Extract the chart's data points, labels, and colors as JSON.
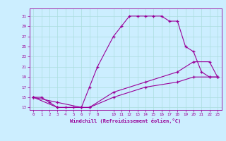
{
  "xlabel": "Windchill (Refroidissement éolien,°C)",
  "bg_color": "#cceeff",
  "grid_color": "#aadddd",
  "line_color": "#990099",
  "xlim": [
    -0.5,
    23.5
  ],
  "ylim": [
    12.5,
    32.5
  ],
  "xticks": [
    0,
    1,
    2,
    3,
    4,
    5,
    6,
    7,
    8,
    10,
    11,
    12,
    13,
    14,
    15,
    16,
    17,
    18,
    19,
    20,
    21,
    22,
    23
  ],
  "yticks": [
    13,
    15,
    17,
    19,
    21,
    23,
    25,
    27,
    29,
    31
  ],
  "curve1_x": [
    0,
    1,
    2,
    3,
    4,
    5,
    6,
    7,
    8,
    10,
    11,
    12,
    13,
    14,
    15,
    16,
    17,
    18,
    19,
    20,
    21,
    22,
    23
  ],
  "curve1_y": [
    15,
    15,
    14,
    13,
    13,
    13,
    13,
    17,
    21,
    27,
    29,
    31,
    31,
    31,
    31,
    31,
    30,
    30,
    25,
    24,
    20,
    19,
    19
  ],
  "curve2_x": [
    0,
    3,
    6,
    7,
    10,
    14,
    18,
    20,
    22,
    23
  ],
  "curve2_y": [
    15,
    14,
    13,
    13,
    16,
    18,
    20,
    22,
    22,
    19
  ],
  "curve3_x": [
    0,
    3,
    7,
    10,
    14,
    18,
    20,
    22,
    23
  ],
  "curve3_y": [
    15,
    13,
    13,
    15,
    17,
    18,
    19,
    19,
    19
  ]
}
